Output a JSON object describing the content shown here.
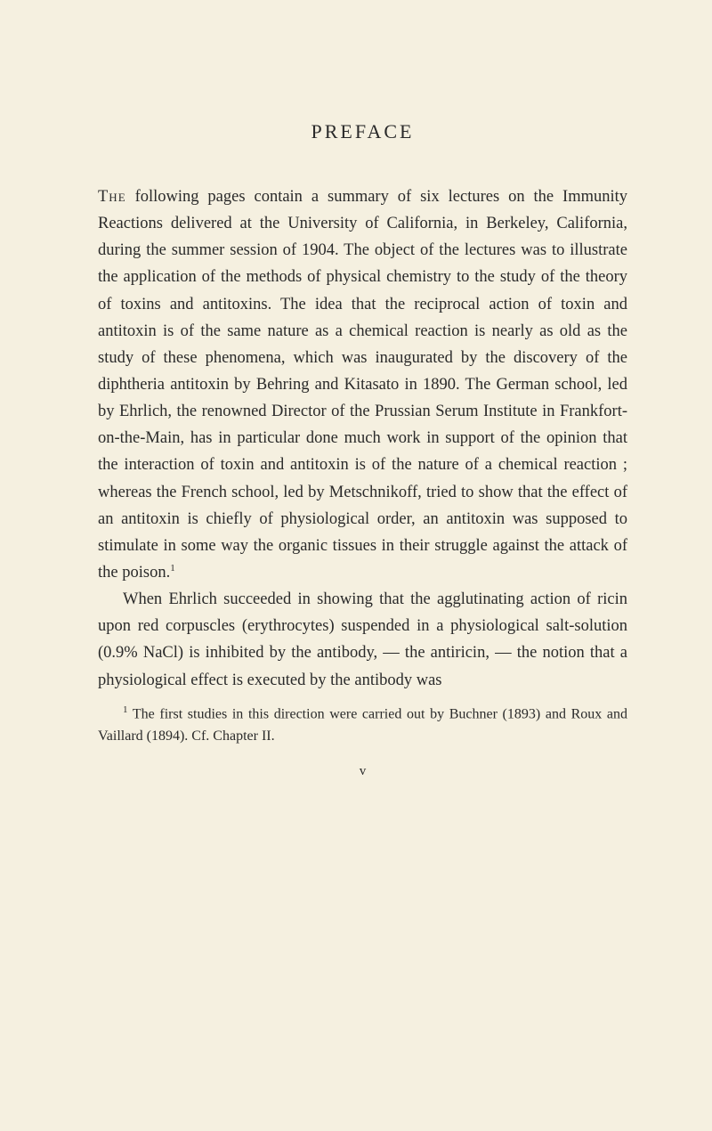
{
  "document": {
    "title": "PREFACE",
    "paragraphs": {
      "first_word": "The",
      "p1_rest": " following pages contain a summary of six lectures on the Immunity Reactions delivered at the University of California, in Berkeley, California, during the summer session of 1904. The object of the lectures was to illustrate the application of the methods of physical chemistry to the study of the theory of toxins and antitoxins. The idea that the reciprocal action of toxin and antitoxin is of the same nature as a chemical reaction is nearly as old as the study of these phenomena, which was inaugurated by the discovery of the diphtheria antitoxin by Behring and Kitasato in 1890. The German school, led by Ehrlich, the renowned Director of the Prussian Serum Institute in Frankfort-on-the-Main, has in particular done much work in support of the opinion that the interaction of toxin and antitoxin is of the nature of a chemical reaction ; whereas the French school, led by Metschnikoff, tried to show that the effect of an antitoxin is chiefly of physiological order, an antitoxin was supposed to stimulate in some way the organic tissues in their struggle against the attack of the poison.",
      "p1_footnote_marker": "1",
      "p2": "When Ehrlich succeeded in showing that the agglutinating action of ricin upon red corpuscles (erythrocytes) suspended in a physiological salt-solution (0.9% NaCl) is inhibited by the antibody, — the antiricin, — the notion that a physiological effect is executed by the antibody was"
    },
    "footnote": {
      "marker": "1",
      "text": " The first studies in this direction were carried out by Buchner (1893) and Roux and Vaillard (1894). Cf. Chapter II."
    },
    "page_number": "v",
    "colors": {
      "background": "#f5f0e0",
      "text": "#2a2a2a"
    },
    "typography": {
      "title_fontsize": 22,
      "body_fontsize": 18.5,
      "footnote_fontsize": 16,
      "line_height": 1.63,
      "font_family": "Georgia, Times New Roman, serif"
    }
  }
}
